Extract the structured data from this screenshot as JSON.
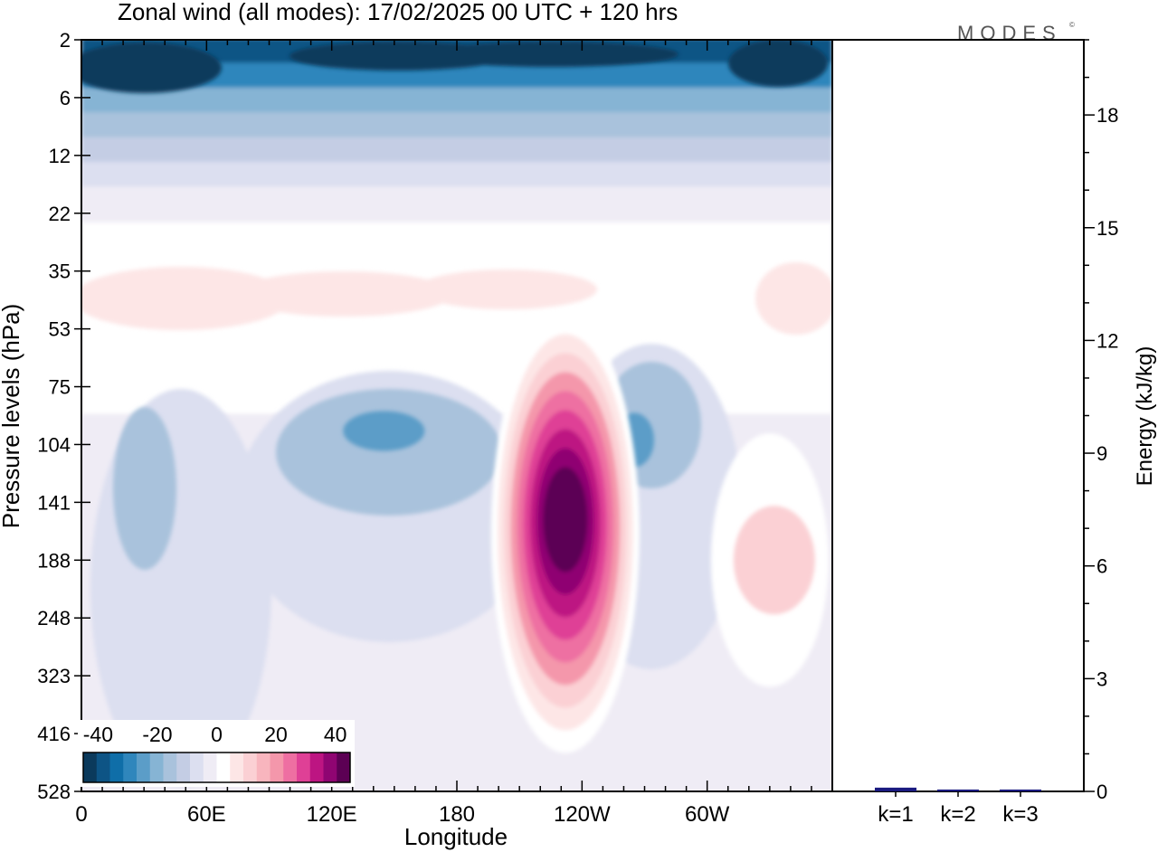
{
  "chart_data": {
    "type": "heatmap",
    "title": "Zonal wind (all modes):  17/02/2025  00 UTC  + 120 hrs",
    "brand": "MODES",
    "brand_mark": "©",
    "xlabel": "Longitude",
    "ylabel": "Pressure levels (hPa)",
    "y2label": "Energy (kJ/kg)",
    "x_ticks": [
      "0",
      "60E",
      "120E",
      "180",
      "120W",
      "60W"
    ],
    "x_tick_degrees": [
      0,
      60,
      120,
      180,
      240,
      300
    ],
    "x_range": [
      0,
      360
    ],
    "y_ticks": [
      "2",
      "6",
      "12",
      "22",
      "35",
      "53",
      "75",
      "104",
      "141",
      "188",
      "248",
      "323",
      "416",
      "528"
    ],
    "y2_ticks": [
      "0",
      "3",
      "6",
      "9",
      "12",
      "15",
      "18"
    ],
    "y2_range": [
      0,
      20
    ],
    "colorbar": {
      "labels": [
        "-40",
        "-20",
        "0",
        "20",
        "40"
      ],
      "label_values": [
        -40,
        -20,
        0,
        20,
        40
      ],
      "range": [
        -45,
        45
      ],
      "colors": [
        "#0b3a5c",
        "#0d5485",
        "#0f6ea8",
        "#2f86bc",
        "#5b9dc8",
        "#86b4d4",
        "#a9c2dc",
        "#c4cde4",
        "#dcdff0",
        "#efecf5",
        "#ffffff",
        "#fde6e6",
        "#fbd0d4",
        "#f8b5be",
        "#f497ab",
        "#ee6fa2",
        "#df4096",
        "#bd1582",
        "#8f0572",
        "#5c0054"
      ]
    },
    "energy_bars": {
      "categories": [
        "k=1",
        "k=2",
        "k=3"
      ],
      "values": [
        0.1,
        0.05,
        0.05
      ],
      "color": "#1a1a80"
    },
    "features": [
      {
        "name": "stratosphere-easterly",
        "lon_range": [
          0,
          360
        ],
        "level_range": [
          "2",
          "22"
        ],
        "peak": -40
      },
      {
        "name": "lower-strat-westerly",
        "lon_range": [
          0,
          360
        ],
        "level_range": [
          "22",
          "75"
        ],
        "peak": 10
      },
      {
        "name": "jet-maximum",
        "lon": 232,
        "level": "141",
        "peak": 45
      },
      {
        "name": "easterly-core-140E",
        "lon": 145,
        "level": "104",
        "peak": -25
      },
      {
        "name": "easterly-core-90W",
        "lon": 265,
        "level": "104",
        "peak": -20
      },
      {
        "name": "westerly-40W",
        "lon": 330,
        "level": "188",
        "peak": 12
      }
    ]
  }
}
